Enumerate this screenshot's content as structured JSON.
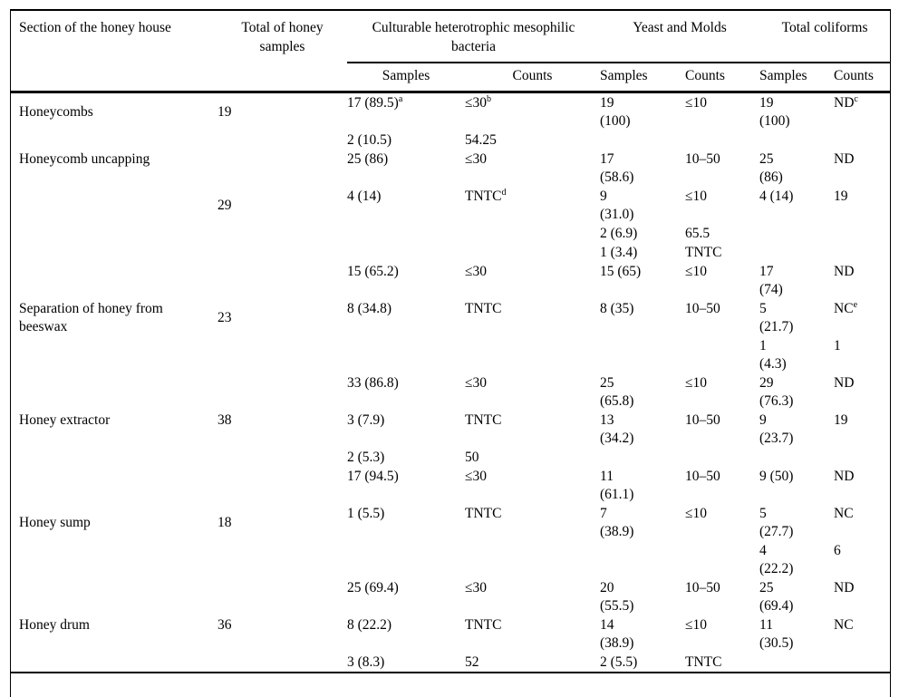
{
  "page": {
    "background": "#ffffff",
    "text_color": "#000000",
    "rule_color": "#000000"
  },
  "table": {
    "header": {
      "section": "Section of the honey house",
      "total": "Total of honey\nsamples",
      "groups": [
        {
          "label": "Culturable heterotrophic mesophilic\nbacteria"
        },
        {
          "label": "Yeast and Molds"
        },
        {
          "label": "Total coliforms"
        }
      ],
      "subheaders": [
        "Samples",
        "Counts",
        "Samples",
        "Counts",
        "Samples",
        "Counts"
      ]
    },
    "groups": [
      {
        "section": {
          "text": "Honeycombs",
          "row": 0,
          "align": "middle"
        },
        "total": {
          "text": "19",
          "row": 0,
          "align": "middle"
        },
        "rows": [
          [
            {
              "t": "17 (89.5)",
              "s": "a"
            },
            {
              "t": "≤30",
              "s": "b"
            },
            {
              "t": "19\n(100)"
            },
            {
              "t": "≤10"
            },
            {
              "t": "19\n(100)"
            },
            {
              "t": "ND",
              "s": "c"
            }
          ],
          [
            {
              "t": "2 (10.5)"
            },
            {
              "t": "54.25"
            },
            {
              "t": ""
            },
            {
              "t": ""
            },
            {
              "t": ""
            },
            {
              "t": ""
            }
          ]
        ]
      },
      {
        "section": {
          "text": "Honeycomb uncapping",
          "row": 0,
          "align": "top"
        },
        "total": {
          "text": "29",
          "row": 1,
          "align": "middle"
        },
        "rows": [
          [
            {
              "t": "25 (86)"
            },
            {
              "t": "≤30"
            },
            {
              "t": "17\n(58.6)"
            },
            {
              "t": "10–50"
            },
            {
              "t": "25\n(86)"
            },
            {
              "t": "ND"
            }
          ],
          [
            {
              "t": "4 (14)"
            },
            {
              "t": "TNTC",
              "s": "d"
            },
            {
              "t": "9\n(31.0)"
            },
            {
              "t": "≤10"
            },
            {
              "t": "4 (14)"
            },
            {
              "t": "19"
            }
          ],
          [
            {
              "t": ""
            },
            {
              "t": ""
            },
            {
              "t": "2 (6.9)"
            },
            {
              "t": "65.5"
            },
            {
              "t": ""
            },
            {
              "t": ""
            }
          ],
          [
            {
              "t": ""
            },
            {
              "t": ""
            },
            {
              "t": "1 (3.4)"
            },
            {
              "t": "TNTC"
            },
            {
              "t": ""
            },
            {
              "t": ""
            }
          ]
        ]
      },
      {
        "section": {
          "text": "Separation of honey from\nbeeswax",
          "row": 1,
          "align": "top"
        },
        "total": {
          "text": "23",
          "row": 1,
          "align": "middle"
        },
        "rows": [
          [
            {
              "t": "15 (65.2)"
            },
            {
              "t": "≤30"
            },
            {
              "t": "15 (65)"
            },
            {
              "t": "≤10"
            },
            {
              "t": "17\n(74)"
            },
            {
              "t": "ND"
            }
          ],
          [
            {
              "t": "8 (34.8)"
            },
            {
              "t": "TNTC"
            },
            {
              "t": "8 (35)"
            },
            {
              "t": "10–50"
            },
            {
              "t": "5\n(21.7)"
            },
            {
              "t": "NC",
              "s": "e"
            }
          ],
          [
            {
              "t": ""
            },
            {
              "t": ""
            },
            {
              "t": ""
            },
            {
              "t": ""
            },
            {
              "t": "1\n(4.3)"
            },
            {
              "t": "1"
            }
          ]
        ]
      },
      {
        "section": {
          "text": "Honey extractor",
          "row": 1,
          "align": "top"
        },
        "total": {
          "text": "38",
          "row": 1,
          "align": "top"
        },
        "rows": [
          [
            {
              "t": "33 (86.8)"
            },
            {
              "t": "≤30"
            },
            {
              "t": "25\n(65.8)"
            },
            {
              "t": "≤10"
            },
            {
              "t": "29\n(76.3)"
            },
            {
              "t": "ND"
            }
          ],
          [
            {
              "t": "3 (7.9)"
            },
            {
              "t": "TNTC"
            },
            {
              "t": "13\n(34.2)"
            },
            {
              "t": "10–50"
            },
            {
              "t": "9\n(23.7)"
            },
            {
              "t": "19"
            }
          ],
          [
            {
              "t": "2 (5.3)"
            },
            {
              "t": "50"
            },
            {
              "t": ""
            },
            {
              "t": ""
            },
            {
              "t": ""
            },
            {
              "t": ""
            }
          ]
        ]
      },
      {
        "section": {
          "text": "Honey sump",
          "row": 1,
          "align": "middle"
        },
        "total": {
          "text": "18",
          "row": 1,
          "align": "middle"
        },
        "rows": [
          [
            {
              "t": "17 (94.5)"
            },
            {
              "t": "≤30"
            },
            {
              "t": "11\n(61.1)"
            },
            {
              "t": "10–50"
            },
            {
              "t": "9 (50)"
            },
            {
              "t": "ND"
            }
          ],
          [
            {
              "t": "1 (5.5)"
            },
            {
              "t": "TNTC"
            },
            {
              "t": "7\n(38.9)"
            },
            {
              "t": "≤10"
            },
            {
              "t": "5\n(27.7)"
            },
            {
              "t": "NC"
            }
          ],
          [
            {
              "t": ""
            },
            {
              "t": ""
            },
            {
              "t": ""
            },
            {
              "t": ""
            },
            {
              "t": "4\n(22.2)"
            },
            {
              "t": "6"
            }
          ]
        ]
      },
      {
        "section": {
          "text": "Honey drum",
          "row": 1,
          "align": "top"
        },
        "total": {
          "text": "36",
          "row": 1,
          "align": "top"
        },
        "rows": [
          [
            {
              "t": "25 (69.4)"
            },
            {
              "t": "≤30"
            },
            {
              "t": "20\n(55.5)"
            },
            {
              "t": "10–50"
            },
            {
              "t": "25\n(69.4)"
            },
            {
              "t": "ND"
            }
          ],
          [
            {
              "t": "8 (22.2)"
            },
            {
              "t": "TNTC"
            },
            {
              "t": "14\n(38.9)"
            },
            {
              "t": "≤10"
            },
            {
              "t": "11\n(30.5)"
            },
            {
              "t": "NC"
            }
          ],
          [
            {
              "t": "3 (8.3)"
            },
            {
              "t": "52"
            },
            {
              "t": "2 (5.5)"
            },
            {
              "t": "TNTC"
            },
            {
              "t": ""
            },
            {
              "t": ""
            }
          ]
        ]
      }
    ]
  }
}
